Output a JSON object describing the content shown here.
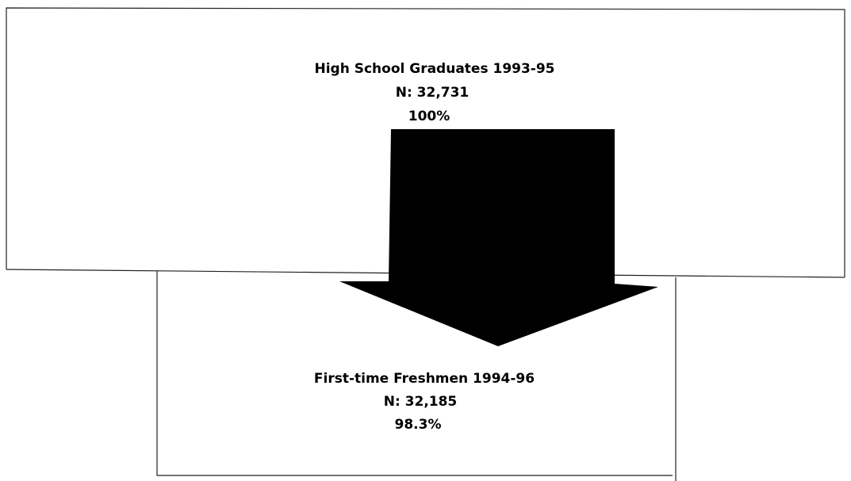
{
  "nodes": [
    {
      "label": "High School Graduates 1993-95",
      "count": "N:  32,731",
      "percent": "100%"
    },
    {
      "label": "First-time Freshmen 1994-96",
      "count": "N:  32,185",
      "percent": "98.3%"
    }
  ]
}
